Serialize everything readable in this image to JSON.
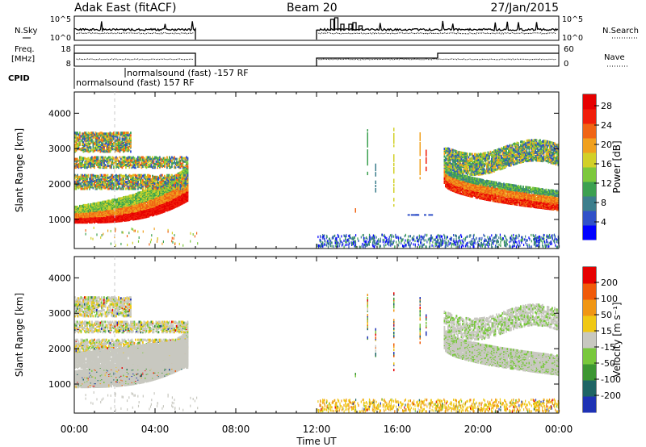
{
  "header": {
    "title": "Adak East (fitACF)",
    "beam": "Beam 20",
    "date": "27/Jan/2015"
  },
  "params": {
    "nsky_label": "N.Sky",
    "nsearch_label": "N.Search",
    "freq_label_1": "Freq.",
    "freq_label_2": "[MHz]",
    "nave_label": "Nave",
    "cpid_label": "CPID",
    "count_ticks_left": [
      "10^5",
      "10^0"
    ],
    "count_ticks_right": [
      "10^5",
      "10^0"
    ],
    "freq_ticks": [
      "18",
      "8"
    ],
    "nave_ticks": [
      "60",
      "0"
    ],
    "cpid_text_1": "normalsound (fast) -157 RF",
    "cpid_text_2": "normalsound (fast) 157 RF"
  },
  "chart_data": [
    {
      "type": "heatmap",
      "name": "power",
      "ylabel": "Slant Range [km]",
      "xlabel": "Time UT",
      "x_ticks": [
        "00:00",
        "04:00",
        "08:00",
        "12:00",
        "16:00",
        "20:00",
        "00:00"
      ],
      "x_range_hours": [
        0,
        24
      ],
      "y_ticks": [
        "1000",
        "2000",
        "3000",
        "4000"
      ],
      "y_range_km": [
        180,
        4600
      ],
      "colorbar_label": "Power [dB]",
      "colorbar_ticks": [
        "4",
        "8",
        "12",
        "16",
        "20",
        "24",
        "28"
      ],
      "colorbar_colors": [
        "#0000ff",
        "#3050c8",
        "#3c7e8c",
        "#3ca050",
        "#7cc83c",
        "#d2d028",
        "#f0a01e",
        "#f06414",
        "#f01e0a",
        "#e60000"
      ]
    },
    {
      "type": "heatmap",
      "name": "velocity",
      "ylabel": "Slant Range [km]",
      "xlabel": "Time UT",
      "x_ticks": [
        "00:00",
        "04:00",
        "08:00",
        "12:00",
        "16:00",
        "20:00",
        "00:00"
      ],
      "x_range_hours": [
        0,
        24
      ],
      "y_ticks": [
        "1000",
        "2000",
        "3000",
        "4000"
      ],
      "y_range_km": [
        180,
        4600
      ],
      "colorbar_label": "Velocity [m s⁻¹]",
      "colorbar_ticks": [
        "200",
        "100",
        "50",
        "15",
        "-15",
        "-50",
        "-100",
        "-200"
      ],
      "colorbar_colors": [
        "#1e32b4",
        "#1e6464",
        "#3c9632",
        "#78c83c",
        "#c8c8c0",
        "#f0c814",
        "#f09614",
        "#f05a0a",
        "#e60000"
      ]
    }
  ]
}
